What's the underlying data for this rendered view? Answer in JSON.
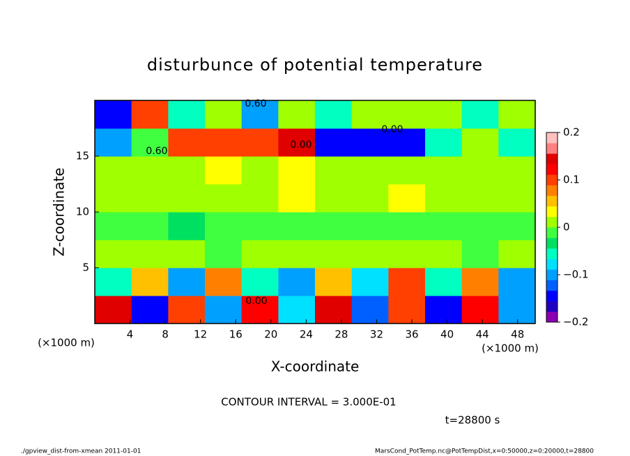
{
  "chart_data": {
    "type": "heatmap",
    "title": "disturbunce of potential temperature",
    "x_label": "X-coordinate",
    "y_label": "Z-coordinate",
    "x_unit": "(×1000 m)",
    "y_unit": "(×1000 m)",
    "xlim": [
      0,
      50
    ],
    "ylim": [
      0,
      20
    ],
    "xticks": [
      4,
      8,
      12,
      16,
      20,
      24,
      28,
      32,
      36,
      40,
      44,
      48
    ],
    "yticks": [
      5,
      10,
      15
    ],
    "x": [
      2.08,
      6.25,
      10.42,
      14.58,
      18.75,
      22.92,
      27.08,
      31.25,
      35.42,
      39.58,
      43.75,
      47.92
    ],
    "z": [
      1.25,
      3.75,
      6.25,
      8.75,
      11.25,
      13.75,
      16.25,
      18.75
    ],
    "values": [
      [
        0.15,
        -0.15,
        0.1,
        -0.1,
        0.12,
        -0.08,
        0.15,
        -0.12,
        0.1,
        -0.15,
        0.12,
        -0.1
      ],
      [
        -0.05,
        0.05,
        -0.1,
        0.08,
        -0.05,
        -0.1,
        0.05,
        -0.08,
        0.1,
        -0.05,
        0.08,
        -0.1
      ],
      [
        0,
        0,
        0.02,
        -0.02,
        0,
        0,
        0,
        0,
        0,
        0,
        -0.02,
        0
      ],
      [
        -0.02,
        -0.02,
        -0.03,
        -0.02,
        -0.02,
        -0.02,
        -0.02,
        -0.02,
        -0.02,
        -0.02,
        -0.02,
        -0.02
      ],
      [
        0,
        0,
        0,
        0.02,
        0,
        0.03,
        0,
        0.02,
        0.03,
        0,
        0,
        0
      ],
      [
        0,
        0.02,
        0,
        0.03,
        0,
        0.03,
        0,
        0,
        0,
        0,
        0,
        0
      ],
      [
        -0.1,
        -0.02,
        0.1,
        0.1,
        0.1,
        0.15,
        -0.15,
        -0.15,
        -0.15,
        -0.05,
        0,
        -0.05
      ],
      [
        -0.15,
        0.1,
        -0.05,
        0,
        -0.1,
        0,
        -0.05,
        0,
        0,
        0,
        -0.05,
        0
      ]
    ],
    "clim": [
      -0.2,
      0.2
    ],
    "colorbar_ticks": [
      {
        "value": -0.2,
        "label": "−0.2"
      },
      {
        "value": -0.1,
        "label": "−0.1"
      },
      0,
      0.1,
      0.2
    ],
    "colors": [
      "#8b00b0",
      "#2000c0",
      "#0000ff",
      "#0060ff",
      "#00a0ff",
      "#00e0ff",
      "#00ffc0",
      "#00e060",
      "#40ff40",
      "#a0ff00",
      "#ffff00",
      "#ffc000",
      "#ff8000",
      "#ff4000",
      "#ff0000",
      "#e00000",
      "#ff8080",
      "#ffc0c0"
    ],
    "annotations": [
      "0.60",
      "0.60",
      "0.00",
      "0.00",
      "0.00"
    ],
    "note": "CONTOUR INTERVAL = 3.000E-01",
    "time": "t=28800 s",
    "footer_left": "./gpview_dist-from-xmean   2011-01-01",
    "footer_right": "MarsCond_PotTemp.nc@PotTempDist,x=0:50000,z=0:20000,t=28800"
  }
}
